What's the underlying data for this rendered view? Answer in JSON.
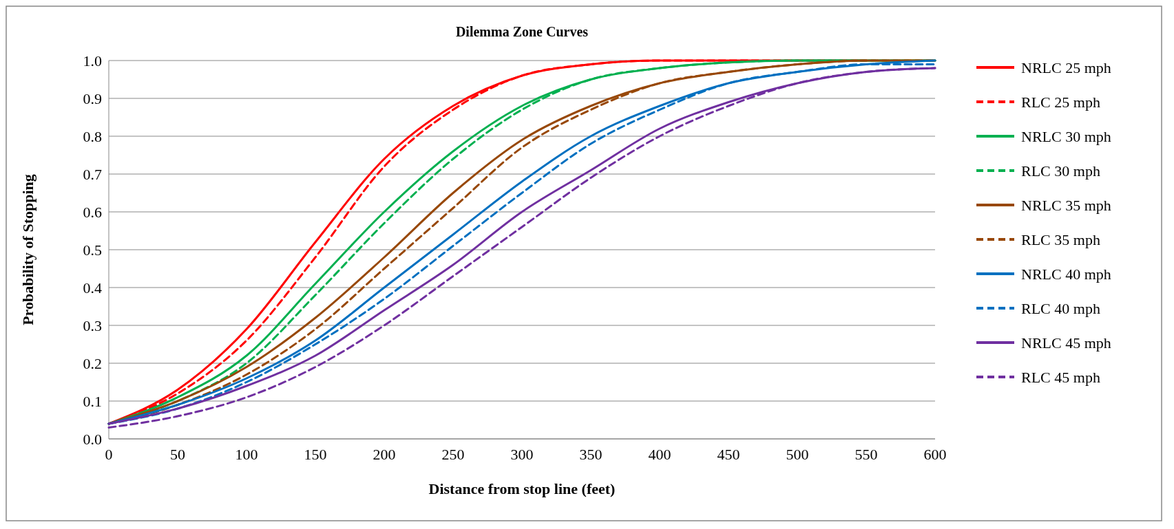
{
  "chart_data": {
    "type": "line",
    "title": "Dilemma Zone Curves",
    "xlabel": "Distance from stop line (feet)",
    "ylabel": "Probability of Stopping",
    "x": [
      0,
      50,
      100,
      150,
      200,
      250,
      300,
      350,
      400,
      450,
      500,
      550,
      600
    ],
    "xlim": [
      0,
      600
    ],
    "xticks": [
      0,
      50,
      100,
      150,
      200,
      250,
      300,
      350,
      400,
      450,
      500,
      550,
      600
    ],
    "ylim": [
      0,
      1
    ],
    "yticks": [
      {
        "value": 0,
        "label": "0.0"
      },
      0.1,
      0.2,
      0.3,
      0.4,
      0.5,
      0.6,
      0.7,
      0.8,
      0.9,
      {
        "value": 1,
        "label": "1.0"
      }
    ],
    "grid": "y",
    "legend": "right",
    "marker": "none",
    "series": [
      {
        "name": "NRLC 25 mph",
        "color": "#ff0000",
        "line_style": "solid",
        "values": [
          0.04,
          0.13,
          0.29,
          0.52,
          0.74,
          0.88,
          0.96,
          0.99,
          1.0,
          1.0,
          1.0,
          1.0,
          null
        ]
      },
      {
        "name": "RLC 25 mph",
        "color": "#ff0000",
        "line_style": "dashed",
        "values": [
          0.04,
          0.12,
          0.26,
          0.48,
          0.72,
          0.87,
          0.96,
          0.99,
          1.0,
          1.0,
          1.0,
          1.0,
          null
        ]
      },
      {
        "name": "NRLC 30 mph",
        "color": "#00b050",
        "line_style": "solid",
        "values": [
          0.04,
          0.11,
          0.22,
          0.41,
          0.6,
          0.76,
          0.88,
          0.95,
          0.98,
          0.995,
          1.0,
          1.0,
          1.0
        ]
      },
      {
        "name": "RLC 30 mph",
        "color": "#00b050",
        "line_style": "dashed",
        "values": [
          0.04,
          0.1,
          0.2,
          0.38,
          0.57,
          0.74,
          0.87,
          0.95,
          0.98,
          0.995,
          1.0,
          1.0,
          1.0
        ]
      },
      {
        "name": "NRLC 35 mph",
        "color": "#984807",
        "line_style": "solid",
        "values": [
          0.04,
          0.1,
          0.19,
          0.32,
          0.48,
          0.65,
          0.79,
          0.88,
          0.94,
          0.97,
          0.99,
          1.0,
          1.0
        ]
      },
      {
        "name": "RLC 35 mph",
        "color": "#984807",
        "line_style": "dashed",
        "values": [
          0.04,
          0.09,
          0.17,
          0.29,
          0.45,
          0.61,
          0.77,
          0.87,
          0.94,
          0.97,
          0.99,
          1.0,
          1.0
        ]
      },
      {
        "name": "NRLC 40 mph",
        "color": "#0070c0",
        "line_style": "solid",
        "values": [
          0.04,
          0.09,
          0.16,
          0.26,
          0.4,
          0.54,
          0.68,
          0.8,
          0.88,
          0.94,
          0.97,
          0.99,
          1.0
        ]
      },
      {
        "name": "RLC 40 mph",
        "color": "#0070c0",
        "line_style": "dashed",
        "values": [
          0.04,
          0.08,
          0.15,
          0.25,
          0.37,
          0.51,
          0.65,
          0.78,
          0.87,
          0.94,
          0.97,
          0.99,
          0.99
        ]
      },
      {
        "name": "NRLC 45 mph",
        "color": "#7030a0",
        "line_style": "solid",
        "values": [
          0.04,
          0.08,
          0.14,
          0.22,
          0.34,
          0.46,
          0.6,
          0.71,
          0.82,
          0.89,
          0.94,
          0.97,
          0.98
        ]
      },
      {
        "name": "RLC 45 mph",
        "color": "#7030a0",
        "line_style": "dashed",
        "values": [
          0.03,
          0.06,
          0.11,
          0.19,
          0.3,
          0.43,
          0.56,
          0.69,
          0.8,
          0.88,
          0.94,
          0.97,
          0.98
        ]
      }
    ]
  }
}
